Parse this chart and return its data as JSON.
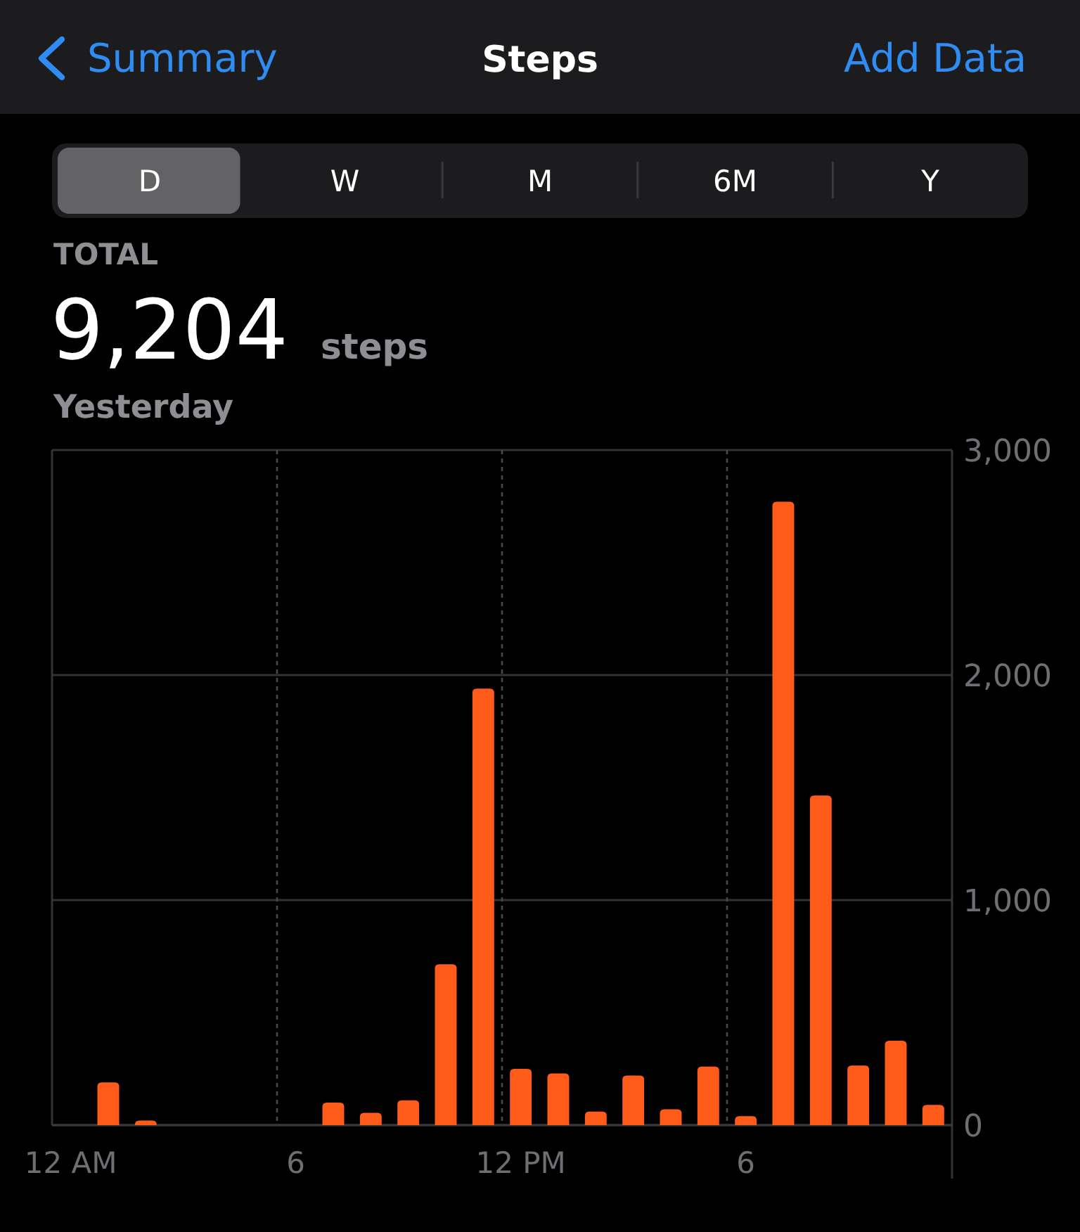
{
  "chart_data": {
    "type": "bar",
    "title": "Steps",
    "annotations": [
      "Summary",
      "Add Data",
      "D",
      "W",
      "M",
      "6M",
      "Y",
      "TOTAL",
      "9,204",
      "steps",
      "Yesterday"
    ],
    "categories": [
      "12 AM",
      null,
      null,
      null,
      null,
      null,
      "6",
      null,
      null,
      null,
      null,
      null,
      "12 PM",
      null,
      null,
      null,
      null,
      null,
      "6",
      null,
      null,
      null,
      null,
      null
    ],
    "values": [
      null,
      190,
      20,
      null,
      null,
      null,
      null,
      100,
      55,
      110,
      715,
      1940,
      250,
      230,
      60,
      220,
      70,
      260,
      40,
      2770,
      1465,
      265,
      375,
      90
    ],
    "color": "#ff5c1c",
    "ylim": [
      0,
      3000
    ],
    "yticks": [
      0,
      {
        "value": 1000,
        "label": "1,000"
      },
      {
        "value": 2000,
        "label": "2,000"
      },
      {
        "value": 3000,
        "label": "3,000"
      }
    ],
    "grid": true
  }
}
